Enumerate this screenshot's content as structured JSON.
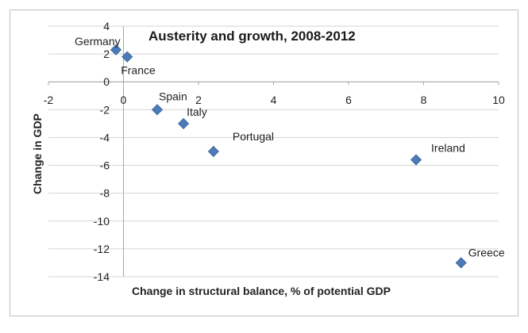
{
  "chart_data": {
    "type": "scatter",
    "title": "Austerity and growth, 2008-2012",
    "xlabel": "Change in structural balance, % of potential GDP",
    "ylabel": "Change in GDP",
    "xlim": [
      -2,
      10
    ],
    "ylim": [
      -14,
      4
    ],
    "xticks": [
      "-2",
      "0",
      "2",
      "4",
      "6",
      "8",
      "10"
    ],
    "yticks": [
      "4",
      "2",
      "0",
      "-2",
      "-4",
      "-6",
      "-8",
      "-10",
      "-12",
      "-14"
    ],
    "grid": "horizontal",
    "marker": "diamond",
    "marker_color": "#4a7ab8",
    "points": [
      {
        "label": "Germany",
        "x": -0.2,
        "y": 2.3
      },
      {
        "label": "France",
        "x": 0.1,
        "y": 1.8
      },
      {
        "label": "Spain",
        "x": 0.9,
        "y": -2.0
      },
      {
        "label": "Italy",
        "x": 1.6,
        "y": -3.0
      },
      {
        "label": "Portugal",
        "x": 2.4,
        "y": -5.0
      },
      {
        "label": "Ireland",
        "x": 7.8,
        "y": -5.6
      },
      {
        "label": "Greece",
        "x": 9.0,
        "y": -13.0
      }
    ]
  }
}
